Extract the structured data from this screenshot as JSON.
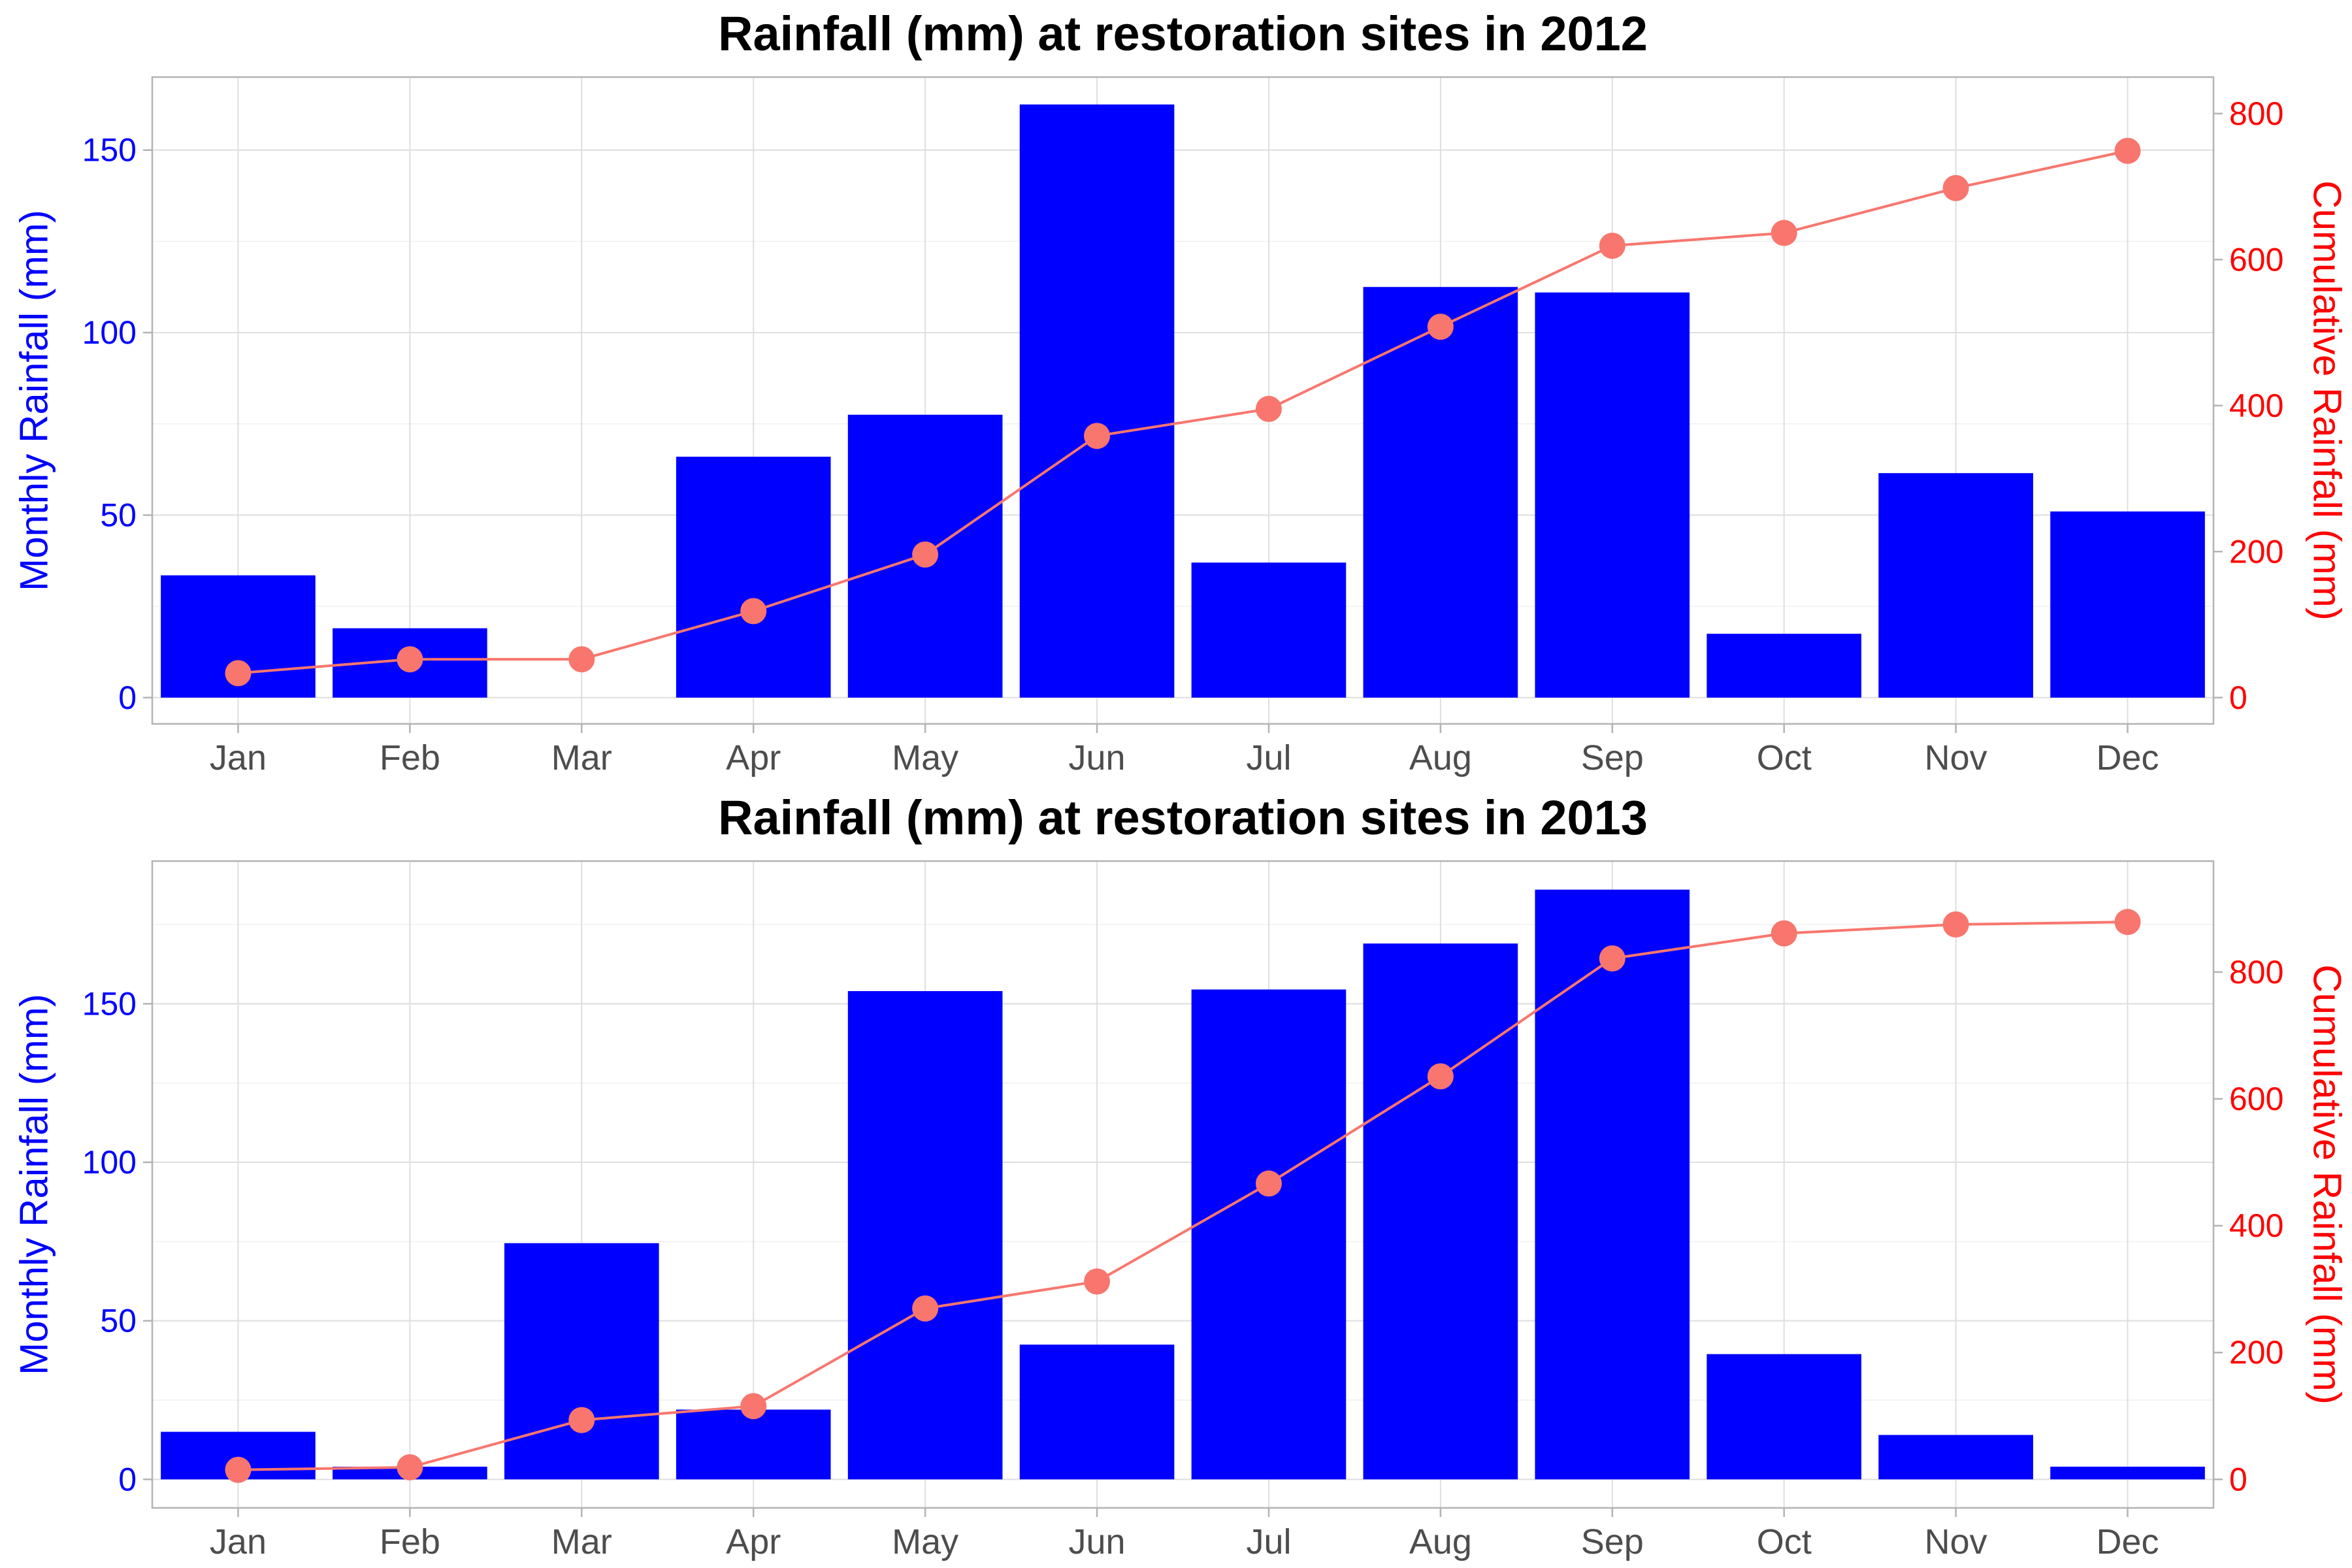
{
  "colors": {
    "bar": "#0000ff",
    "line": "#f8766d",
    "left_axis": "#0000ff",
    "right_axis": "#ff0000"
  },
  "chart_data": [
    {
      "type": "bar",
      "title": "Rainfall (mm) at restoration sites in 2012",
      "categories": [
        "Jan",
        "Feb",
        "Mar",
        "Apr",
        "May",
        "Jun",
        "Jul",
        "Aug",
        "Sep",
        "Oct",
        "Nov",
        "Dec"
      ],
      "ylabel": "Monthly Rainfall (mm)",
      "y2label": "Cumulative Rainfall (mm)",
      "ylim": [
        -7.2,
        170
      ],
      "y2lim": [
        -36,
        850
      ],
      "yticks": [
        0,
        50,
        100,
        150
      ],
      "y2ticks": [
        0,
        200,
        400,
        600,
        800
      ],
      "grid": true,
      "series": [
        {
          "kind": "bar",
          "axis": "left",
          "values": [
            33.5,
            19,
            0,
            66,
            77.5,
            162.5,
            37,
            112.5,
            111,
            17.5,
            61.5,
            51
          ]
        },
        {
          "kind": "line",
          "axis": "right",
          "values": [
            33.5,
            52.5,
            52.5,
            118.5,
            196,
            358.5,
            395.5,
            508,
            619,
            636.5,
            698,
            749
          ]
        }
      ]
    },
    {
      "type": "bar",
      "title": "Rainfall (mm) at restoration sites in 2013",
      "categories": [
        "Jan",
        "Feb",
        "Mar",
        "Apr",
        "May",
        "Jun",
        "Jul",
        "Aug",
        "Sep",
        "Oct",
        "Nov",
        "Dec"
      ],
      "ylabel": "Monthly Rainfall (mm)",
      "y2label": "Cumulative Rainfall (mm)",
      "ylim": [
        -9,
        195
      ],
      "y2lim": [
        -45,
        975
      ],
      "yticks": [
        0,
        50,
        100,
        150
      ],
      "y2ticks": [
        0,
        200,
        400,
        600,
        800
      ],
      "grid": true,
      "series": [
        {
          "kind": "bar",
          "axis": "left",
          "values": [
            15,
            4,
            74.5,
            22,
            154,
            42.5,
            154.5,
            169,
            186,
            39.5,
            14,
            4
          ]
        },
        {
          "kind": "line",
          "axis": "right",
          "values": [
            15,
            19,
            93.5,
            115.5,
            269.5,
            312,
            466.5,
            635.5,
            821.5,
            861,
            875,
            879
          ]
        }
      ]
    }
  ]
}
